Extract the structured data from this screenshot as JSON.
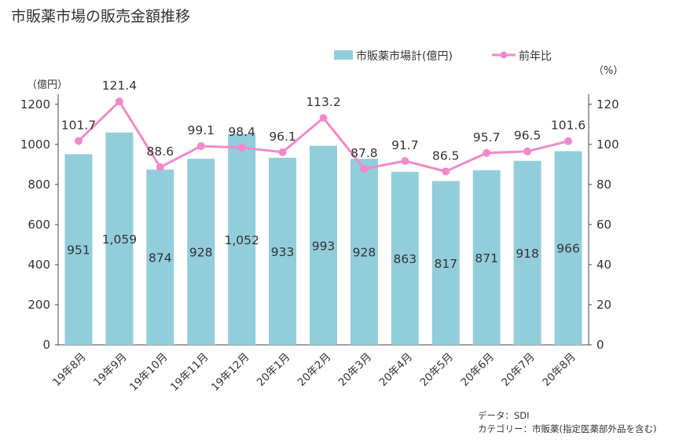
{
  "title": "市販薬市場の販売金額推移",
  "source_line1": "データ：SDI",
  "source_line2": "カテゴリー：市販薬(指定医薬部外品を含む)",
  "chart_data": {
    "type": "bar",
    "categories": [
      "19年8月",
      "19年9月",
      "19年10月",
      "19年11月",
      "19年12月",
      "20年1月",
      "20年2月",
      "20年3月",
      "20年4月",
      "20年5月",
      "20年6月",
      "20年7月",
      "20年8月"
    ],
    "series": [
      {
        "name": "市販薬市場計(億円)",
        "type": "bar",
        "axis": "left",
        "color": "#92cddc",
        "values": [
          951,
          1059,
          874,
          928,
          1052,
          933,
          993,
          928,
          863,
          817,
          871,
          918,
          966
        ],
        "labels": [
          "951",
          "1,059",
          "874",
          "928",
          "1,052",
          "933",
          "993",
          "928",
          "863",
          "817",
          "871",
          "918",
          "966"
        ]
      },
      {
        "name": "前年比",
        "type": "line",
        "axis": "right",
        "color": "#f08ac8",
        "values": [
          101.7,
          121.4,
          88.6,
          99.1,
          98.4,
          96.1,
          113.2,
          87.8,
          91.7,
          86.5,
          95.7,
          96.5,
          101.6
        ],
        "labels": [
          "101.7",
          "121.4",
          "88.6",
          "99.1",
          "98.4",
          "96.1",
          "113.2",
          "87.8",
          "91.7",
          "86.5",
          "95.7",
          "96.5",
          "101.6"
        ]
      }
    ],
    "y_left": {
      "unit": "（億円）",
      "ylim": [
        0,
        1250
      ],
      "ticks": [
        "0",
        "200",
        "400",
        "600",
        "800",
        "1000",
        "1200"
      ],
      "tick_values": [
        0,
        200,
        400,
        600,
        800,
        1000,
        1200
      ]
    },
    "y_right": {
      "unit": "（%）",
      "ylim": [
        0,
        125
      ],
      "ticks": [
        "0",
        "20",
        "40",
        "60",
        "80",
        "100",
        "120"
      ],
      "tick_values": [
        0,
        20,
        40,
        60,
        80,
        100,
        120
      ]
    },
    "grid": false,
    "legend_position": "top-right"
  }
}
